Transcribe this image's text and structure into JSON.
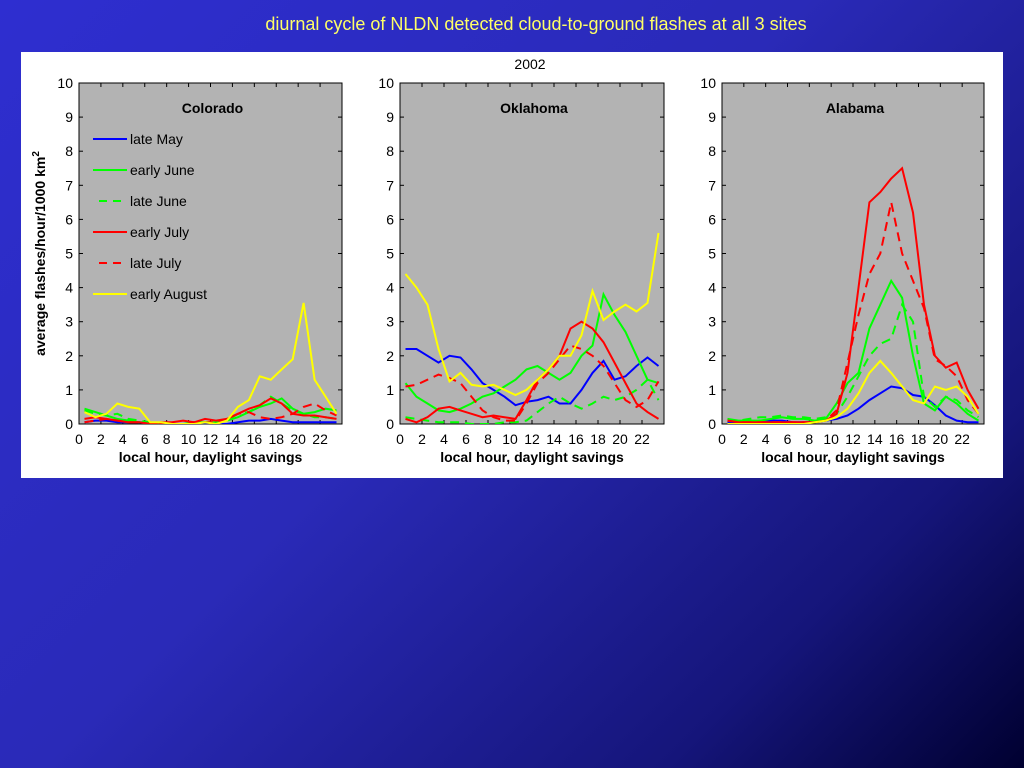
{
  "slide": {
    "title": "diurnal cycle of NLDN detected cloud-to-ground flashes at all 3 sites",
    "figure_title": "2002"
  },
  "colors": {
    "late_may": "#0000ff",
    "early_june": "#00ff00",
    "late_june": "#00ff00",
    "early_july": "#ff0000",
    "late_july": "#ff0000",
    "early_august": "#ffff00",
    "plot_bg": "#b3b3b3"
  },
  "chart_data": [
    {
      "type": "line",
      "title": "Colorado",
      "xlabel": "local hour, daylight savings",
      "ylabel": "average flashes/hour/1000 km",
      "ylabel_superscript": "2",
      "xlim": [
        0,
        24
      ],
      "ylim": [
        0,
        10
      ],
      "xticks": [
        0,
        2,
        4,
        6,
        8,
        10,
        12,
        14,
        16,
        18,
        20,
        22
      ],
      "yticks": [
        0,
        1,
        2,
        3,
        4,
        5,
        6,
        7,
        8,
        9,
        10
      ],
      "legend_position": "top-left",
      "x": [
        0.5,
        1.5,
        2.5,
        3.5,
        4.5,
        5.5,
        6.5,
        7.5,
        8.5,
        9.5,
        10.5,
        11.5,
        12.5,
        13.5,
        14.5,
        15.5,
        16.5,
        17.5,
        18.5,
        19.5,
        20.5,
        21.5,
        22.5,
        23.5
      ],
      "series": [
        {
          "name": "late May",
          "color": "#0000ff",
          "dash": false,
          "values": [
            0.05,
            0.1,
            0.1,
            0.05,
            0.05,
            0.05,
            0,
            0,
            0,
            0,
            0,
            0,
            0,
            0,
            0.05,
            0.1,
            0.1,
            0.15,
            0.1,
            0.05,
            0.05,
            0.05,
            0.05,
            0.05
          ]
        },
        {
          "name": "early June",
          "color": "#00ff00",
          "dash": false,
          "values": [
            0.45,
            0.35,
            0.25,
            0.15,
            0.1,
            0.05,
            0.05,
            0,
            0,
            0,
            0.05,
            0.05,
            0.05,
            0.1,
            0.2,
            0.35,
            0.5,
            0.6,
            0.75,
            0.45,
            0.3,
            0.35,
            0.45,
            0.4
          ]
        },
        {
          "name": "late June",
          "color": "#00ff00",
          "dash": true,
          "values": [
            0.4,
            0.3,
            0.25,
            0.3,
            0.15,
            0.1,
            0.05,
            0,
            0,
            0,
            0,
            0.05,
            0.05,
            0.1,
            0.3,
            0.35,
            0.55,
            0.8,
            0.6,
            0.4,
            0.3,
            0.2,
            0.2,
            0.15
          ]
        },
        {
          "name": "early July",
          "color": "#ff0000",
          "dash": false,
          "values": [
            0.15,
            0.2,
            0.15,
            0.1,
            0.05,
            0.05,
            0,
            0.05,
            0.05,
            0.1,
            0.05,
            0.15,
            0.1,
            0.15,
            0.3,
            0.45,
            0.55,
            0.75,
            0.6,
            0.3,
            0.25,
            0.25,
            0.2,
            0.15
          ]
        },
        {
          "name": "late July",
          "color": "#ff0000",
          "dash": true,
          "values": [
            0.05,
            0.1,
            0.15,
            0.1,
            0.05,
            0.05,
            0,
            0,
            0,
            0,
            0.05,
            0.05,
            0.05,
            0.15,
            0.3,
            0.35,
            0.2,
            0.15,
            0.2,
            0.3,
            0.5,
            0.6,
            0.4,
            0.25
          ]
        },
        {
          "name": "early August",
          "color": "#ffff00",
          "dash": false,
          "values": [
            0.35,
            0.2,
            0.3,
            0.6,
            0.5,
            0.45,
            0.05,
            0.05,
            0,
            0,
            0,
            0.05,
            0,
            0.1,
            0.5,
            0.7,
            1.4,
            1.3,
            1.6,
            1.9,
            3.55,
            1.3,
            0.8,
            0.3
          ]
        }
      ]
    },
    {
      "type": "line",
      "title": "Oklahoma",
      "xlabel": "local hour, daylight savings",
      "xlim": [
        0,
        24
      ],
      "ylim": [
        0,
        10
      ],
      "xticks": [
        0,
        2,
        4,
        6,
        8,
        10,
        12,
        14,
        16,
        18,
        20,
        22
      ],
      "yticks": [
        0,
        1,
        2,
        3,
        4,
        5,
        6,
        7,
        8,
        9,
        10
      ],
      "x": [
        0.5,
        1.5,
        2.5,
        3.5,
        4.5,
        5.5,
        6.5,
        7.5,
        8.5,
        9.5,
        10.5,
        11.5,
        12.5,
        13.5,
        14.5,
        15.5,
        16.5,
        17.5,
        18.5,
        19.5,
        20.5,
        21.5,
        22.5,
        23.5
      ],
      "series": [
        {
          "name": "late May",
          "color": "#0000ff",
          "dash": false,
          "values": [
            2.2,
            2.2,
            2.0,
            1.8,
            2.0,
            1.95,
            1.6,
            1.2,
            1.0,
            0.8,
            0.55,
            0.65,
            0.7,
            0.8,
            0.6,
            0.6,
            1.0,
            1.5,
            1.85,
            1.3,
            1.4,
            1.7,
            1.95,
            1.7
          ]
        },
        {
          "name": "early June",
          "color": "#00ff00",
          "dash": false,
          "values": [
            1.2,
            0.8,
            0.6,
            0.4,
            0.35,
            0.45,
            0.6,
            0.8,
            0.9,
            1.1,
            1.3,
            1.6,
            1.7,
            1.5,
            1.3,
            1.5,
            2.0,
            2.3,
            3.8,
            3.2,
            2.7,
            2.0,
            1.3,
            1.2
          ]
        },
        {
          "name": "late June",
          "color": "#00ff00",
          "dash": true,
          "values": [
            0.2,
            0.15,
            0.1,
            0.05,
            0.05,
            0.05,
            0,
            0,
            0,
            0.05,
            0.05,
            0.1,
            0.35,
            0.6,
            0.8,
            0.6,
            0.45,
            0.6,
            0.8,
            0.7,
            0.8,
            1.0,
            1.3,
            0.7
          ]
        },
        {
          "name": "early July",
          "color": "#ff0000",
          "dash": false,
          "values": [
            0.15,
            0.05,
            0.2,
            0.45,
            0.5,
            0.4,
            0.3,
            0.2,
            0.25,
            0.2,
            0.15,
            0.7,
            1.3,
            1.6,
            2.0,
            2.8,
            3.0,
            2.8,
            2.4,
            1.8,
            1.2,
            0.6,
            0.35,
            0.15
          ]
        },
        {
          "name": "late July",
          "color": "#ff0000",
          "dash": true,
          "values": [
            1.1,
            1.15,
            1.3,
            1.45,
            1.35,
            1.2,
            0.8,
            0.4,
            0.2,
            0.1,
            0.1,
            0.6,
            1.2,
            1.5,
            1.9,
            2.3,
            2.2,
            2.0,
            1.7,
            1.2,
            0.7,
            0.5,
            0.7,
            1.25
          ]
        },
        {
          "name": "early August",
          "color": "#ffff00",
          "dash": false,
          "values": [
            4.4,
            4.0,
            3.5,
            2.2,
            1.25,
            1.5,
            1.15,
            1.1,
            1.15,
            1.0,
            0.85,
            1.0,
            1.3,
            1.6,
            2.0,
            2.0,
            2.6,
            3.9,
            3.05,
            3.3,
            3.5,
            3.3,
            3.55,
            5.6
          ]
        }
      ]
    },
    {
      "type": "line",
      "title": "Alabama",
      "xlabel": "local hour, daylight savings",
      "xlim": [
        0,
        24
      ],
      "ylim": [
        0,
        10
      ],
      "xticks": [
        0,
        2,
        4,
        6,
        8,
        10,
        12,
        14,
        16,
        18,
        20,
        22
      ],
      "yticks": [
        0,
        1,
        2,
        3,
        4,
        5,
        6,
        7,
        8,
        9,
        10
      ],
      "x": [
        0.5,
        1.5,
        2.5,
        3.5,
        4.5,
        5.5,
        6.5,
        7.5,
        8.5,
        9.5,
        10.5,
        11.5,
        12.5,
        13.5,
        14.5,
        15.5,
        16.5,
        17.5,
        18.5,
        19.5,
        20.5,
        21.5,
        22.5,
        23.5
      ],
      "series": [
        {
          "name": "late May",
          "color": "#0000ff",
          "dash": false,
          "values": [
            0.05,
            0.05,
            0.05,
            0.1,
            0.1,
            0.1,
            0.05,
            0.05,
            0.05,
            0.1,
            0.15,
            0.25,
            0.45,
            0.7,
            0.9,
            1.1,
            1.05,
            0.85,
            0.8,
            0.55,
            0.25,
            0.1,
            0.05,
            0.05
          ]
        },
        {
          "name": "early June",
          "color": "#00ff00",
          "dash": false,
          "values": [
            0.15,
            0.1,
            0.1,
            0.1,
            0.15,
            0.2,
            0.15,
            0.15,
            0.1,
            0.15,
            0.6,
            1.2,
            1.5,
            2.8,
            3.5,
            4.2,
            3.7,
            2.0,
            0.6,
            0.4,
            0.8,
            0.6,
            0.3,
            0.1
          ]
        },
        {
          "name": "late June",
          "color": "#00ff00",
          "dash": true,
          "values": [
            0.1,
            0.1,
            0.15,
            0.2,
            0.2,
            0.25,
            0.2,
            0.2,
            0.15,
            0.2,
            0.3,
            0.8,
            1.4,
            2.0,
            2.35,
            2.5,
            3.5,
            3.0,
            0.8,
            0.5,
            0.8,
            0.7,
            0.4,
            0.2
          ]
        },
        {
          "name": "early July",
          "color": "#ff0000",
          "dash": false,
          "values": [
            0.1,
            0.05,
            0.05,
            0.05,
            0.05,
            0.05,
            0.05,
            0.05,
            0.05,
            0.1,
            0.3,
            1.5,
            4.0,
            6.5,
            6.8,
            7.2,
            7.5,
            6.2,
            3.5,
            2.0,
            1.65,
            1.8,
            1.0,
            0.45
          ]
        },
        {
          "name": "late July",
          "color": "#ff0000",
          "dash": true,
          "values": [
            0.1,
            0.05,
            0.05,
            0.05,
            0.05,
            0.05,
            0.05,
            0.05,
            0.05,
            0.1,
            0.4,
            1.8,
            3.2,
            4.4,
            5.0,
            6.5,
            5.0,
            4.2,
            3.4,
            1.9,
            1.7,
            1.4,
            0.7,
            0.3
          ]
        },
        {
          "name": "early August",
          "color": "#ffff00",
          "dash": false,
          "values": [
            0,
            0,
            0,
            0,
            0,
            0,
            0,
            0,
            0.05,
            0.1,
            0.2,
            0.45,
            0.9,
            1.5,
            1.85,
            1.5,
            1.1,
            0.7,
            0.6,
            1.1,
            1.0,
            1.1,
            0.8,
            0.3
          ]
        }
      ]
    }
  ]
}
